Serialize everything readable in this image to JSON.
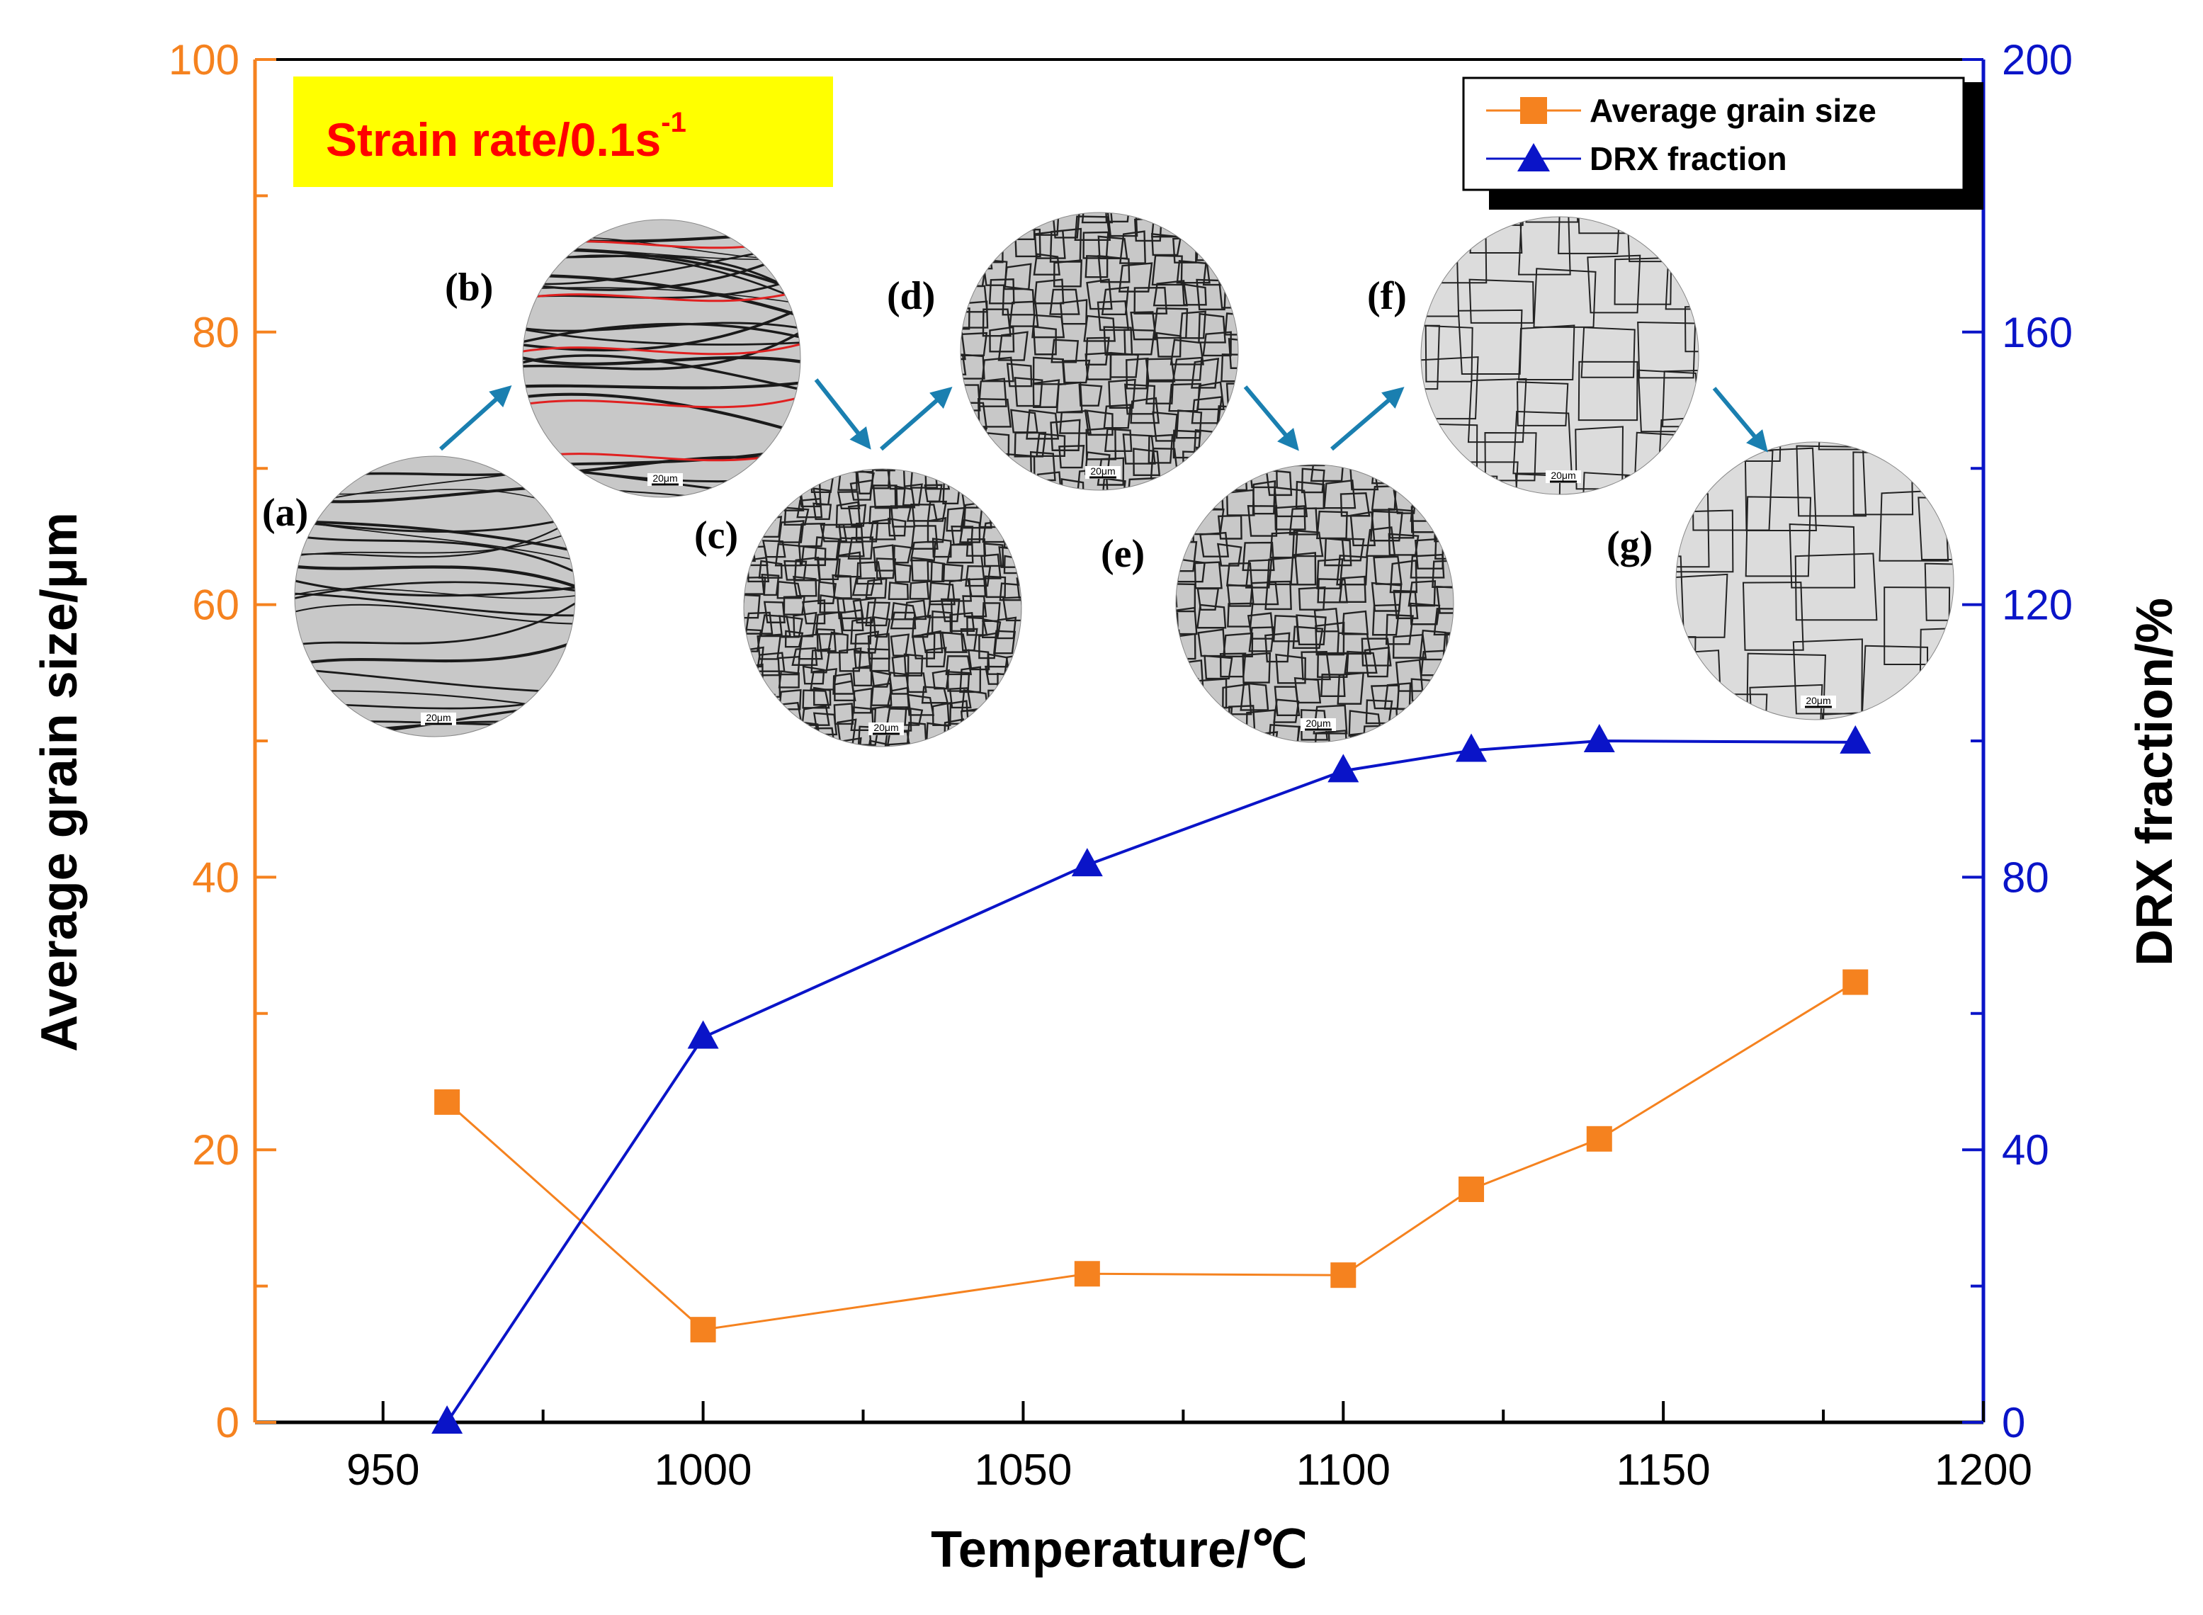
{
  "chart_data": {
    "type": "line",
    "xlabel": "Temperature/℃",
    "ylabel_left": "Average grain size/μm",
    "ylabel_right": "DRX fraction/%",
    "xlim": [
      930,
      1200
    ],
    "xticks": [
      950,
      1000,
      1050,
      1100,
      1150,
      1200
    ],
    "ylim_left": [
      0,
      100
    ],
    "yticks_left": [
      0,
      20,
      40,
      60,
      80,
      100
    ],
    "ylim_right": [
      0,
      200
    ],
    "yticks_right": [
      0,
      40,
      80,
      120,
      160,
      200
    ],
    "legend_position": "top-right",
    "series": [
      {
        "name": "Average grain size",
        "axis": "left",
        "marker": "square",
        "color": "#f5821f",
        "x": [
          960,
          1000,
          1060,
          1100,
          1120,
          1140,
          1180
        ],
        "y": [
          23.5,
          6.8,
          10.9,
          10.8,
          17.1,
          20.8,
          32.3
        ]
      },
      {
        "name": "DRX fraction",
        "axis": "right",
        "marker": "triangle",
        "color": "#0a14c8",
        "x": [
          960,
          1000,
          1060,
          1100,
          1120,
          1140,
          1180
        ],
        "y": [
          0,
          56.5,
          81.8,
          95.6,
          98.6,
          100,
          99.8
        ]
      }
    ],
    "annotations": {
      "banner_main": "Strain rate/0.1s",
      "banner_sup": "-1",
      "panels": [
        {
          "letter": "(a)",
          "scale": "20μm"
        },
        {
          "letter": "(b)",
          "scale": "20μm"
        },
        {
          "letter": "(c)",
          "scale": "20μm"
        },
        {
          "letter": "(d)",
          "scale": "20μm"
        },
        {
          "letter": "(e)",
          "scale": "20μm"
        },
        {
          "letter": "(f)",
          "scale": "20μm"
        },
        {
          "letter": "(g)",
          "scale": "20μm"
        }
      ]
    }
  },
  "colors": {
    "left_axis": "#f5821f",
    "right_axis": "#0a14c8",
    "banner_bg": "#ffff00",
    "banner_text": "#ff0000",
    "arrow": "#1a7fb0",
    "micrograph_boundary_red": "#e02020"
  }
}
